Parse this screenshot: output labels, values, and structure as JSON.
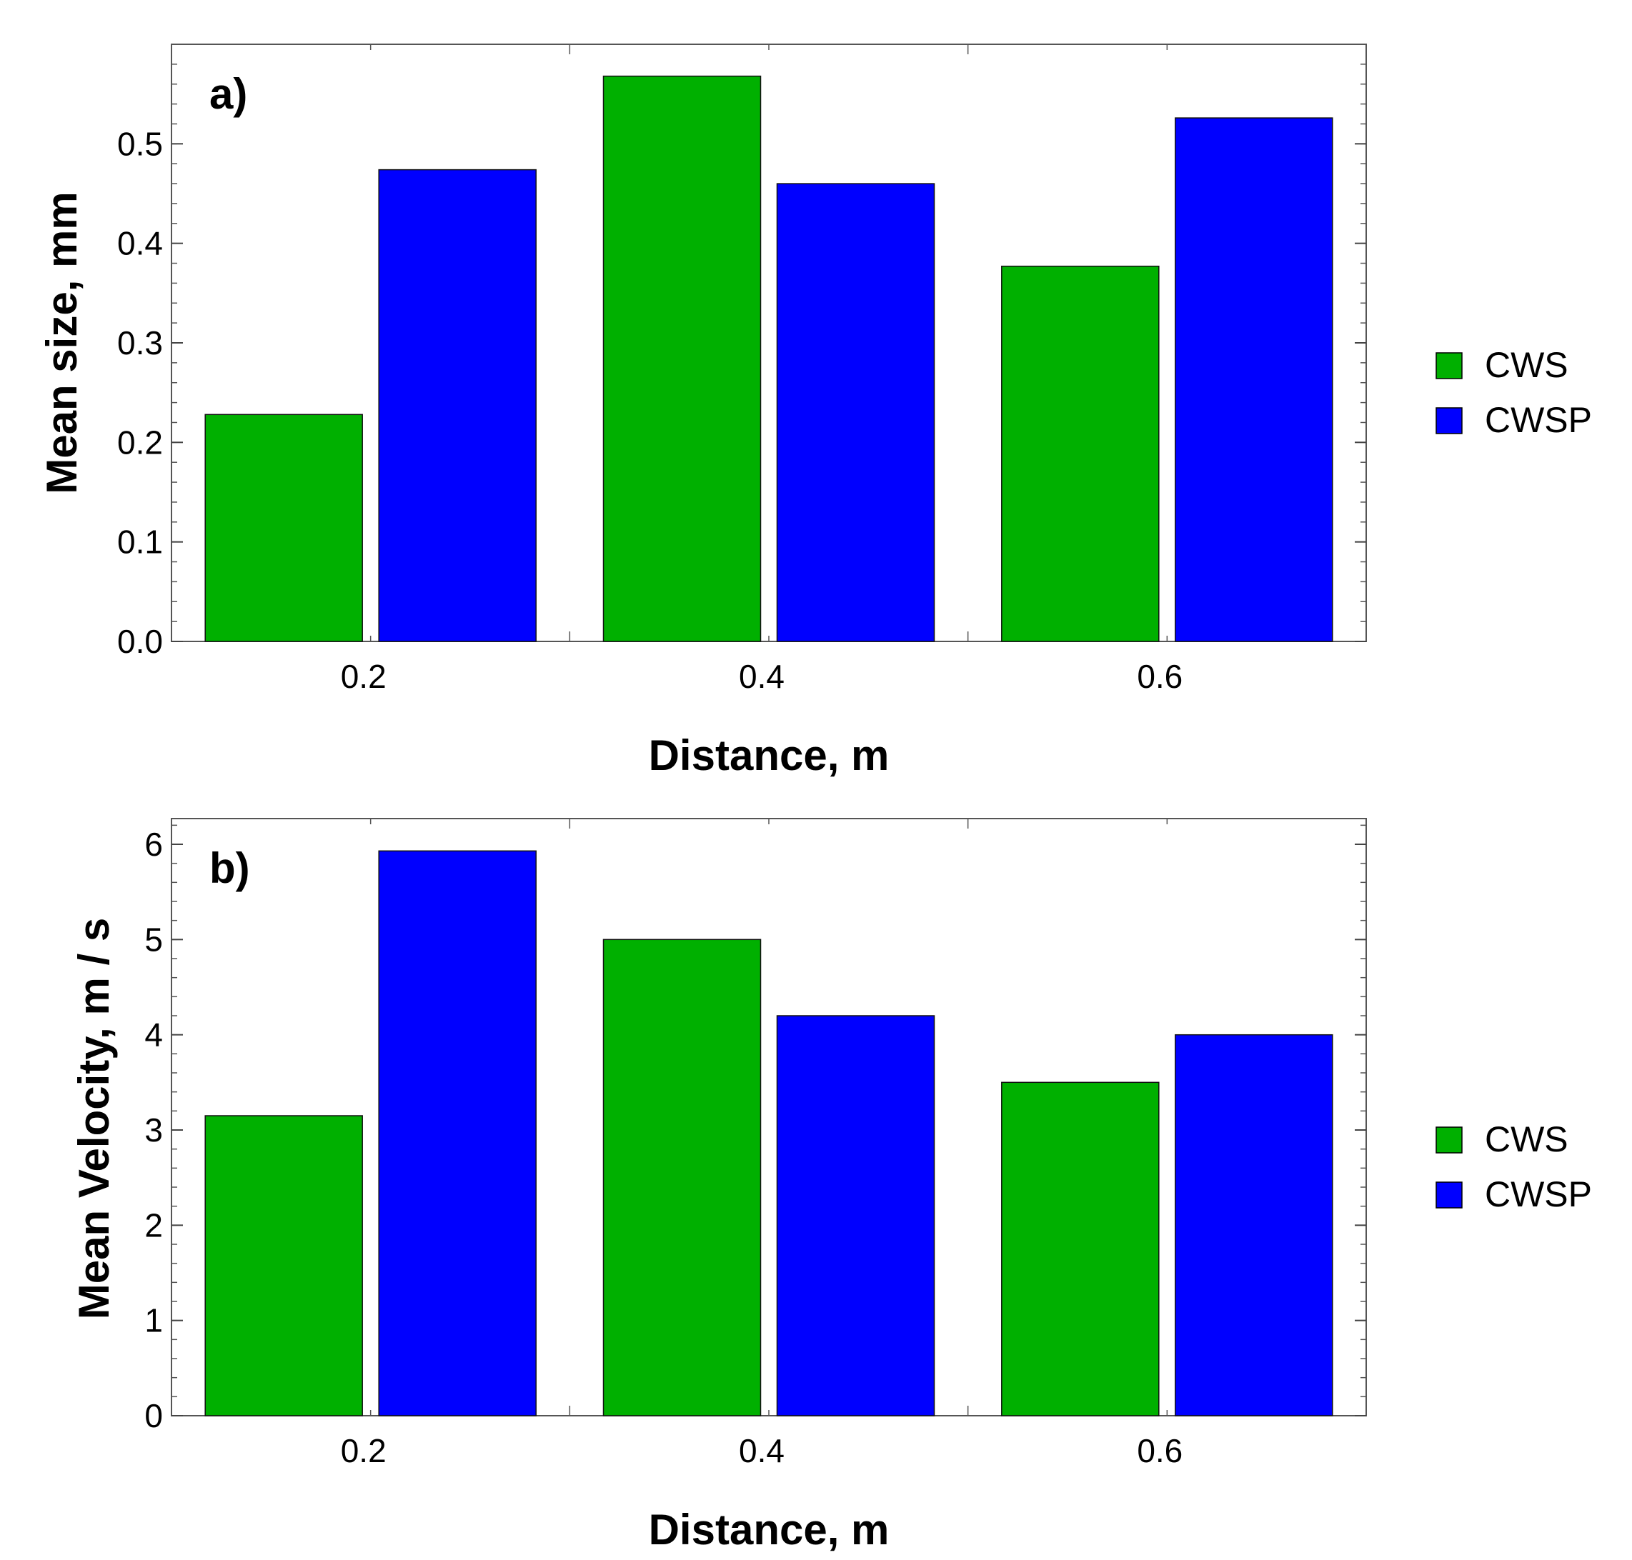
{
  "chart_data": [
    {
      "type": "bar",
      "panel_label": "a)",
      "categories": [
        "0.2",
        "0.4",
        "0.6"
      ],
      "series": [
        {
          "name": "CWS",
          "color": "#00b000",
          "values": [
            0.228,
            0.568,
            0.377
          ]
        },
        {
          "name": "CWSP",
          "color": "#0000ff",
          "values": [
            0.474,
            0.46,
            0.526
          ]
        }
      ],
      "xlabel": "Distance, m",
      "ylabel": "Mean size, mm",
      "ylim": [
        0,
        0.6
      ],
      "yticks": [
        0.0,
        0.1,
        0.2,
        0.3,
        0.4,
        0.5
      ],
      "ytick_labels": [
        "0.0",
        "0.1",
        "0.2",
        "0.3",
        "0.4",
        "0.5"
      ],
      "legend_placement": "right"
    },
    {
      "type": "bar",
      "panel_label": "b)",
      "categories": [
        "0.2",
        "0.4",
        "0.6"
      ],
      "series": [
        {
          "name": "CWS",
          "color": "#00b000",
          "values": [
            3.15,
            5.0,
            3.5
          ]
        },
        {
          "name": "CWSP",
          "color": "#0000ff",
          "values": [
            5.93,
            4.2,
            4.0
          ]
        }
      ],
      "xlabel": "Distance, m",
      "ylabel": "Mean Velocity, m / s",
      "ylim": [
        0,
        6.27
      ],
      "yticks": [
        0,
        1,
        2,
        3,
        4,
        5,
        6
      ],
      "ytick_labels": [
        "0",
        "1",
        "2",
        "3",
        "4",
        "5",
        "6"
      ],
      "legend_placement": "right"
    }
  ]
}
